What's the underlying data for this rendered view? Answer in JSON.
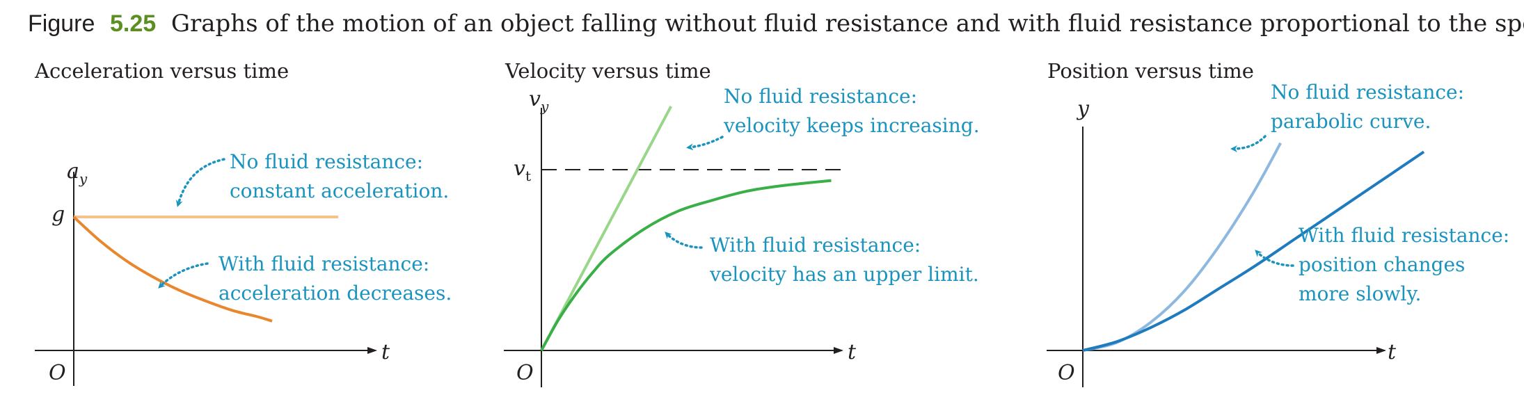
{
  "caption": {
    "label": "Figure",
    "number": "5.25",
    "text": "Graphs of the motion of an object falling without fluid resistance and with fluid resistance proportional to the speed."
  },
  "colors": {
    "axis": "#231f20",
    "annotation": "#1a93be",
    "orange_light": "#f5c28c",
    "orange": "#e8872e",
    "green_light": "#98d68a",
    "green": "#3aaf48",
    "blue_light": "#8db8e0",
    "blue": "#1f7bbf"
  },
  "chart_data": [
    {
      "type": "line",
      "title": "Acceleration versus time",
      "ylabel_main": "a",
      "ylabel_sub": "y",
      "xlabel": "t",
      "origin_label": "O",
      "y_tick_label": "g",
      "series": [
        {
          "x": [
            0,
            10
          ],
          "y": [
            1,
            1
          ]
        },
        {
          "x": [
            0,
            1,
            2,
            3,
            4,
            5,
            6,
            7,
            7.5
          ],
          "y": [
            1,
            0.82,
            0.67,
            0.55,
            0.45,
            0.37,
            0.3,
            0.25,
            0.22
          ]
        }
      ],
      "annotations": [
        {
          "lines": [
            "No fluid resistance:",
            "constant acceleration."
          ]
        },
        {
          "lines": [
            "With fluid resistance:",
            "acceleration decreases."
          ]
        }
      ]
    },
    {
      "type": "line",
      "title": "Velocity versus time",
      "ylabel_main": "v",
      "ylabel_sub": "y",
      "xlabel": "t",
      "origin_label": "O",
      "y_tick_label_main": "v",
      "y_tick_label_sub": "t",
      "terminal_velocity": 1,
      "series": [
        {
          "x": [
            0,
            3.8
          ],
          "y": [
            0,
            1.35
          ]
        },
        {
          "x": [
            0,
            0.5,
            1,
            1.5,
            2,
            3,
            4,
            5,
            6,
            7,
            8.5
          ],
          "y": [
            0,
            0.17,
            0.31,
            0.43,
            0.53,
            0.67,
            0.77,
            0.83,
            0.88,
            0.91,
            0.94
          ]
        }
      ],
      "annotations": [
        {
          "lines": [
            "No fluid resistance:",
            "velocity keeps increasing."
          ]
        },
        {
          "lines": [
            "With fluid resistance:",
            "velocity has an upper limit."
          ]
        }
      ]
    },
    {
      "type": "line",
      "title": "Position versus time",
      "ylabel_main": "y",
      "xlabel": "t",
      "origin_label": "O",
      "series": [
        {
          "x": [
            0,
            1,
            2,
            3,
            4,
            5,
            5.8
          ],
          "y": [
            0,
            0.045,
            0.16,
            0.34,
            0.59,
            0.89,
            1.17
          ]
        },
        {
          "x": [
            0,
            1,
            2,
            3,
            4,
            5,
            6,
            7,
            8,
            9,
            10
          ],
          "y": [
            0,
            0.05,
            0.13,
            0.23,
            0.35,
            0.47,
            0.6,
            0.73,
            0.86,
            0.99,
            1.12
          ]
        }
      ],
      "annotations": [
        {
          "lines": [
            "No fluid resistance:",
            "parabolic curve."
          ]
        },
        {
          "lines": [
            "With fluid resistance:",
            "position changes",
            "more slowly."
          ]
        }
      ]
    }
  ]
}
